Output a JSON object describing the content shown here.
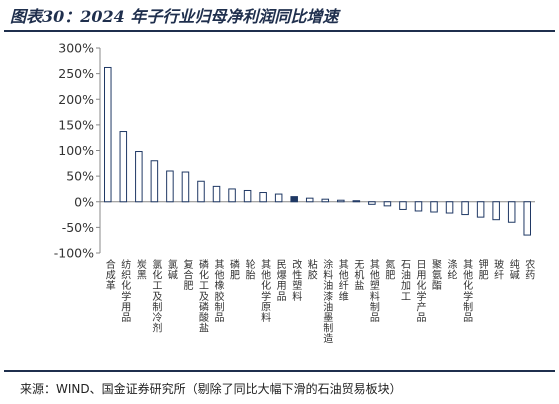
{
  "header": {
    "title": "图表30：2024 年子行业归母净利润同比增速"
  },
  "footer": {
    "source": "来源：WIND、国金证券研究所（剔除了同比大幅下滑的石油贸易板块）"
  },
  "colors": {
    "bar": "#1f3864",
    "bar_highlight": "#1f3864",
    "axis": "#888888",
    "text": "#333333"
  },
  "chart_data": {
    "type": "bar",
    "title": "2024 年子行业归母净利润同比增速",
    "xlabel": "",
    "ylabel": "",
    "ylim": [
      -100,
      300
    ],
    "yticks": [
      300,
      250,
      200,
      150,
      100,
      50,
      0,
      -50,
      -100
    ],
    "ytick_labels": [
      "300%",
      "250%",
      "200%",
      "150%",
      "100%",
      "50%",
      "0%",
      "-50%",
      "-100%"
    ],
    "grid": false,
    "legend": "none",
    "highlight_index": 12,
    "categories": [
      "合成革",
      "纺织化学用品",
      "炭黑",
      "氯化工及制冷剂",
      "氯碱",
      "复合肥",
      "磷化工及磷酸盐",
      "其他橡胶制品",
      "磷肥",
      "轮胎",
      "其他化学原料",
      "民爆用品",
      "改性塑料",
      "粘胶",
      "涂料油漆油墨制造",
      "其他纤维",
      "无机盐",
      "其他塑料制品",
      "氮肥",
      "石油加工",
      "日用化学产品",
      "聚氨酯",
      "涤纶",
      "其他化学制品",
      "钾肥",
      "玻纤",
      "纯碱",
      "农药"
    ],
    "values": [
      262,
      137,
      98,
      80,
      60,
      58,
      40,
      30,
      25,
      22,
      18,
      15,
      10,
      7,
      5,
      3,
      2,
      -5,
      -8,
      -15,
      -18,
      -20,
      -22,
      -25,
      -30,
      -35,
      -40,
      -65
    ]
  }
}
